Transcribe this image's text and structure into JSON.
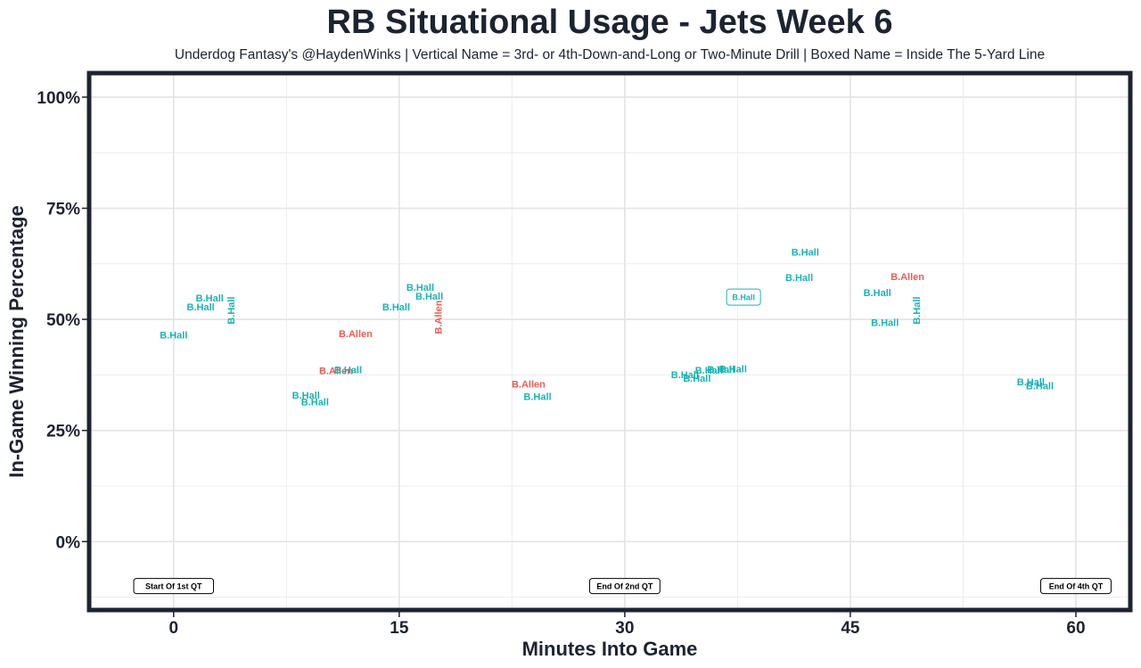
{
  "chart_data": {
    "type": "scatter",
    "title": "RB Situational Usage - Jets Week 6",
    "subtitle": "Underdog Fantasy's @HaydenWinks | Vertical Name = 3rd- or 4th-Down-and-Long or Two-Minute Drill | Boxed Name = Inside The 5-Yard Line",
    "xlabel": "Minutes Into Game",
    "ylabel": "In-Game Winning Percentage",
    "xlim": [
      -5.5,
      63.5
    ],
    "ylim": [
      -15,
      105
    ],
    "x_ticks": [
      0,
      15,
      30,
      45,
      60
    ],
    "x_tick_labels": [
      "0",
      "15",
      "30",
      "45",
      "60"
    ],
    "y_ticks": [
      0,
      25,
      50,
      75,
      100
    ],
    "y_tick_labels": [
      "0%",
      "25%",
      "50%",
      "75%",
      "100%"
    ],
    "grid": true,
    "colors": {
      "B.Hall": "#1ab3b3",
      "B.Allen": "#ee5a52"
    },
    "points": [
      {
        "player": "B.Hall",
        "x": 0.0,
        "y": 46.5,
        "style": "normal"
      },
      {
        "player": "B.Hall",
        "x": 1.8,
        "y": 52.8,
        "style": "normal"
      },
      {
        "player": "B.Hall",
        "x": 2.4,
        "y": 54.8,
        "style": "normal"
      },
      {
        "player": "B.Hall",
        "x": 3.8,
        "y": 52.0,
        "style": "vertical"
      },
      {
        "player": "B.Hall",
        "x": 8.8,
        "y": 33.0,
        "style": "normal"
      },
      {
        "player": "B.Hall",
        "x": 9.4,
        "y": 31.5,
        "style": "normal"
      },
      {
        "player": "B.Allen",
        "x": 10.8,
        "y": 38.5,
        "style": "normal"
      },
      {
        "player": "B.Hall",
        "x": 11.6,
        "y": 38.7,
        "style": "normal"
      },
      {
        "player": "B.Allen",
        "x": 12.1,
        "y": 46.8,
        "style": "normal"
      },
      {
        "player": "B.Hall",
        "x": 14.8,
        "y": 52.8,
        "style": "normal"
      },
      {
        "player": "B.Hall",
        "x": 16.4,
        "y": 57.2,
        "style": "normal"
      },
      {
        "player": "B.Hall",
        "x": 17.0,
        "y": 55.2,
        "style": "normal"
      },
      {
        "player": "B.Allen",
        "x": 17.6,
        "y": 50.5,
        "style": "vertical"
      },
      {
        "player": "B.Allen",
        "x": 23.6,
        "y": 35.5,
        "style": "normal"
      },
      {
        "player": "B.Hall",
        "x": 24.2,
        "y": 32.7,
        "style": "normal"
      },
      {
        "player": "B.Hall",
        "x": 34.0,
        "y": 37.6,
        "style": "normal"
      },
      {
        "player": "B.Hall",
        "x": 34.8,
        "y": 36.8,
        "style": "normal"
      },
      {
        "player": "B.Hall",
        "x": 35.6,
        "y": 38.6,
        "style": "normal"
      },
      {
        "player": "B.Hall",
        "x": 36.4,
        "y": 38.8,
        "style": "normal"
      },
      {
        "player": "B.Hall",
        "x": 37.2,
        "y": 38.9,
        "style": "normal"
      },
      {
        "player": "B.Hall",
        "x": 37.9,
        "y": 55.0,
        "style": "boxed"
      },
      {
        "player": "B.Hall",
        "x": 42.0,
        "y": 65.2,
        "style": "normal"
      },
      {
        "player": "B.Hall",
        "x": 41.6,
        "y": 59.4,
        "style": "normal"
      },
      {
        "player": "B.Hall",
        "x": 46.8,
        "y": 56.0,
        "style": "normal"
      },
      {
        "player": "B.Hall",
        "x": 47.3,
        "y": 49.3,
        "style": "normal"
      },
      {
        "player": "B.Allen",
        "x": 48.8,
        "y": 59.6,
        "style": "normal"
      },
      {
        "player": "B.Hall",
        "x": 49.4,
        "y": 52.0,
        "style": "vertical"
      },
      {
        "player": "B.Hall",
        "x": 57.0,
        "y": 36.0,
        "style": "normal"
      },
      {
        "player": "B.Hall",
        "x": 57.6,
        "y": 35.1,
        "style": "normal"
      }
    ],
    "annotations": [
      {
        "text": "Start Of 1st QT",
        "x": 0,
        "y": -10
      },
      {
        "text": "End Of 2nd QT",
        "x": 30,
        "y": -10
      },
      {
        "text": "End Of 4th QT",
        "x": 60,
        "y": -10
      }
    ]
  }
}
